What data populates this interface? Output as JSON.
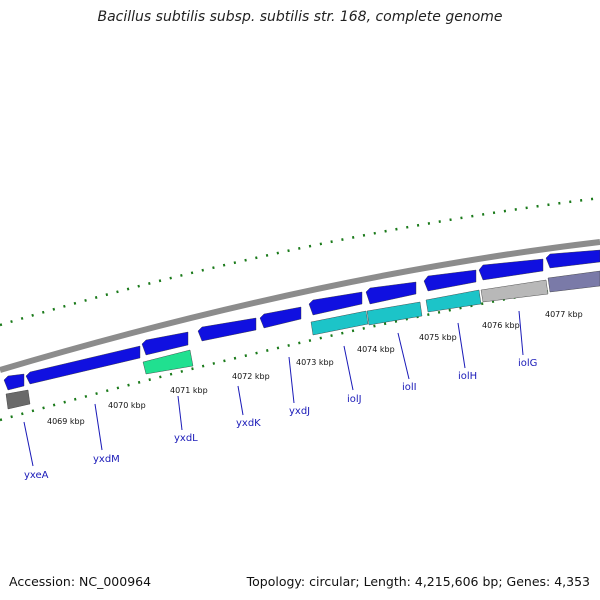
{
  "title": "Bacillus subtilis subsp. subtilis str. 168, complete genome",
  "footer": {
    "accession": "Accession: NC_000964",
    "summary": "Topology: circular; Length: 4,215,606 bp; Genes: 4,353"
  },
  "colors": {
    "backbone": "#8c8c8c",
    "tick": "#1a7a1a",
    "gene_blue": "#1010e0",
    "gene_cyan": "#1cc4c8",
    "gene_green": "#20e090",
    "gene_gray": "#b8b8b8",
    "gene_darkgray": "#6a6a6a",
    "label": "#1a1ab8"
  },
  "kbp_labels": [
    "4069 kbp",
    "4070 kbp",
    "4071 kbp",
    "4072 kbp",
    "4073 kbp",
    "4074 kbp",
    "4075 kbp",
    "4076 kbp",
    "4077 kbp"
  ],
  "gene_labels": [
    "yxeA",
    "yxdM",
    "yxdL",
    "yxdK",
    "yxdJ",
    "iolJ",
    "iolI",
    "iolH",
    "iolG"
  ]
}
